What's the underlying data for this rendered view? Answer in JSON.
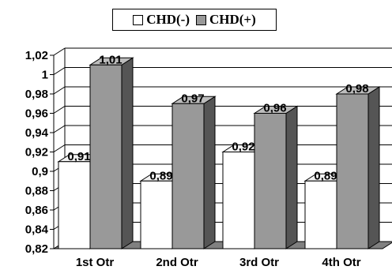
{
  "legend": {
    "items": [
      {
        "label": "CHD(-)",
        "color": "#ffffff"
      },
      {
        "label": "CHD(+)",
        "color": "#999999"
      }
    ]
  },
  "chart_data": {
    "type": "bar",
    "categories": [
      "1st Otr",
      "2nd Otr",
      "3rd Otr",
      "4th Otr"
    ],
    "series": [
      {
        "name": "CHD(-)",
        "values": [
          0.91,
          0.89,
          0.92,
          0.89
        ],
        "labels": [
          "0,91",
          "0,89",
          "0,92",
          "0,89"
        ]
      },
      {
        "name": "CHD(+)",
        "values": [
          1.01,
          0.97,
          0.96,
          0.98
        ],
        "labels": [
          "1,01",
          "0,97",
          "0,96",
          "0,98"
        ]
      }
    ],
    "ylim": [
      0.82,
      1.02
    ],
    "yticks": [
      0.82,
      0.84,
      0.86,
      0.88,
      0.9,
      0.92,
      0.94,
      0.96,
      0.98,
      1.0,
      1.02
    ],
    "ytick_labels": [
      "0,82",
      "0,84",
      "0,86",
      "0,88",
      "0,9",
      "0,92",
      "0,94",
      "0,96",
      "0,98",
      "1",
      "1,02"
    ],
    "grid": true,
    "legend_position": "top-center",
    "style": "3d-bar"
  }
}
